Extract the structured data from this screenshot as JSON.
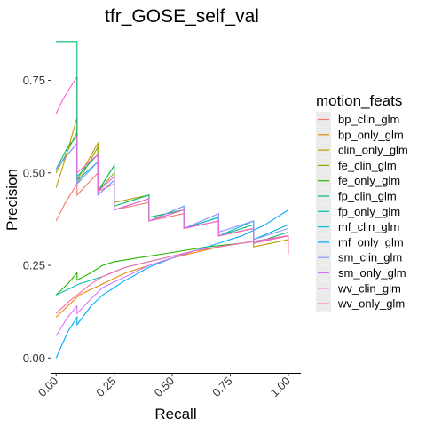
{
  "chart_data": {
    "type": "line",
    "title": "tfr_GOSE_self_val",
    "xlabel": "Recall",
    "ylabel": "Precision",
    "xlim": [
      -0.02,
      1.05
    ],
    "ylim": [
      -0.04,
      0.9
    ],
    "x_ticks": [
      {
        "value": 0.0,
        "label": "0.00"
      },
      {
        "value": 0.25,
        "label": "0.25"
      },
      {
        "value": 0.5,
        "label": "0.50"
      },
      {
        "value": 0.75,
        "label": "0.75"
      },
      {
        "value": 1.0,
        "label": "1.00"
      }
    ],
    "y_ticks": [
      {
        "value": 0.0,
        "label": "0.00"
      },
      {
        "value": 0.25,
        "label": "0.25"
      },
      {
        "value": 0.5,
        "label": "0.50"
      },
      {
        "value": 0.75,
        "label": "0.75"
      }
    ],
    "grid": false,
    "legend_position": "right",
    "legend_title": "motion_feats",
    "series": [
      {
        "name": "bp_clin_glm",
        "color": "#F8766D",
        "points": [
          [
            0.0,
            0.37
          ],
          [
            0.04,
            0.42
          ],
          [
            0.09,
            0.47
          ],
          [
            0.09,
            0.44
          ],
          [
            0.18,
            0.5
          ],
          [
            0.18,
            0.45
          ],
          [
            0.25,
            0.47
          ],
          [
            0.25,
            0.4
          ],
          [
            0.4,
            0.42
          ],
          [
            0.4,
            0.37
          ],
          [
            0.55,
            0.39
          ],
          [
            0.55,
            0.35
          ],
          [
            0.7,
            0.37
          ],
          [
            0.7,
            0.33
          ],
          [
            0.85,
            0.35
          ],
          [
            0.85,
            0.31
          ],
          [
            1.0,
            0.33
          ]
        ]
      },
      {
        "name": "bp_only_glm",
        "color": "#E18A00",
        "points": [
          [
            0.0,
            0.11
          ],
          [
            0.05,
            0.14
          ],
          [
            0.1,
            0.17
          ],
          [
            0.2,
            0.2
          ],
          [
            0.3,
            0.23
          ],
          [
            0.4,
            0.25
          ],
          [
            0.5,
            0.27
          ],
          [
            0.6,
            0.285
          ],
          [
            0.7,
            0.3
          ],
          [
            0.8,
            0.31
          ],
          [
            0.9,
            0.32
          ],
          [
            1.0,
            0.33
          ]
        ]
      },
      {
        "name": "clin_only_glm",
        "color": "#BE9C00",
        "points": [
          [
            0.0,
            0.46
          ],
          [
            0.05,
            0.56
          ],
          [
            0.09,
            0.65
          ],
          [
            0.09,
            0.48
          ],
          [
            0.18,
            0.58
          ],
          [
            0.18,
            0.45
          ],
          [
            0.25,
            0.52
          ],
          [
            0.25,
            0.42
          ],
          [
            0.4,
            0.44
          ],
          [
            0.4,
            0.38
          ],
          [
            0.55,
            0.4
          ],
          [
            0.55,
            0.35
          ],
          [
            0.7,
            0.37
          ],
          [
            0.7,
            0.33
          ],
          [
            0.85,
            0.35
          ],
          [
            0.85,
            0.3
          ],
          [
            1.0,
            0.32
          ]
        ]
      },
      {
        "name": "fe_clin_glm",
        "color": "#8CAB00",
        "points": [
          [
            0.0,
            0.5
          ],
          [
            0.05,
            0.56
          ],
          [
            0.09,
            0.61
          ],
          [
            0.09,
            0.47
          ],
          [
            0.18,
            0.57
          ],
          [
            0.18,
            0.45
          ],
          [
            0.25,
            0.5
          ],
          [
            0.25,
            0.4
          ],
          [
            0.4,
            0.43
          ],
          [
            0.4,
            0.37
          ],
          [
            0.55,
            0.4
          ],
          [
            0.55,
            0.35
          ],
          [
            0.7,
            0.38
          ],
          [
            0.7,
            0.33
          ],
          [
            0.85,
            0.35
          ],
          [
            0.85,
            0.31
          ],
          [
            1.0,
            0.33
          ]
        ]
      },
      {
        "name": "fe_only_glm",
        "color": "#24B700",
        "points": [
          [
            0.0,
            0.17
          ],
          [
            0.05,
            0.2
          ],
          [
            0.09,
            0.23
          ],
          [
            0.09,
            0.21
          ],
          [
            0.15,
            0.23
          ],
          [
            0.2,
            0.25
          ],
          [
            0.25,
            0.26
          ],
          [
            0.35,
            0.27
          ],
          [
            0.5,
            0.285
          ],
          [
            0.65,
            0.3
          ],
          [
            0.8,
            0.31
          ],
          [
            1.0,
            0.33
          ]
        ]
      },
      {
        "name": "fp_clin_glm",
        "color": "#00BE70",
        "points": [
          [
            0.0,
            0.51
          ],
          [
            0.05,
            0.57
          ],
          [
            0.09,
            0.6
          ],
          [
            0.09,
            0.49
          ],
          [
            0.18,
            0.55
          ],
          [
            0.18,
            0.45
          ],
          [
            0.25,
            0.52
          ],
          [
            0.25,
            0.41
          ],
          [
            0.4,
            0.44
          ],
          [
            0.4,
            0.38
          ],
          [
            0.55,
            0.4
          ],
          [
            0.55,
            0.35
          ],
          [
            0.7,
            0.38
          ],
          [
            0.7,
            0.33
          ],
          [
            0.85,
            0.36
          ],
          [
            0.85,
            0.31
          ],
          [
            1.0,
            0.34
          ]
        ]
      },
      {
        "name": "fp_only_glm",
        "color": "#00C1AB",
        "points": [
          [
            0.0,
            0.17
          ],
          [
            0.1,
            0.2
          ],
          [
            0.2,
            0.22
          ],
          [
            0.3,
            0.245
          ],
          [
            0.4,
            0.26
          ],
          [
            0.5,
            0.275
          ],
          [
            0.6,
            0.29
          ],
          [
            0.7,
            0.3
          ],
          [
            0.8,
            0.31
          ],
          [
            0.9,
            0.32
          ],
          [
            1.0,
            0.33
          ]
        ]
      },
      {
        "name": "mf_clin_glm",
        "color": "#00BBDA",
        "points": [
          [
            0.0,
            0.51
          ],
          [
            0.05,
            0.55
          ],
          [
            0.09,
            0.58
          ],
          [
            0.09,
            0.48
          ],
          [
            0.18,
            0.53
          ],
          [
            0.18,
            0.44
          ],
          [
            0.25,
            0.48
          ],
          [
            0.25,
            0.4
          ],
          [
            0.4,
            0.43
          ],
          [
            0.4,
            0.37
          ],
          [
            0.55,
            0.41
          ],
          [
            0.55,
            0.35
          ],
          [
            0.7,
            0.38
          ],
          [
            0.7,
            0.33
          ],
          [
            0.85,
            0.37
          ],
          [
            0.85,
            0.32
          ],
          [
            1.0,
            0.36
          ]
        ]
      },
      {
        "name": "mf_only_glm",
        "color": "#00ACFC",
        "points": [
          [
            0.0,
            0.0
          ],
          [
            0.05,
            0.07
          ],
          [
            0.09,
            0.11
          ],
          [
            0.09,
            0.09
          ],
          [
            0.15,
            0.14
          ],
          [
            0.2,
            0.17
          ],
          [
            0.3,
            0.21
          ],
          [
            0.4,
            0.245
          ],
          [
            0.5,
            0.27
          ],
          [
            0.6,
            0.29
          ],
          [
            0.7,
            0.31
          ],
          [
            0.8,
            0.33
          ],
          [
            0.9,
            0.36
          ],
          [
            1.0,
            0.4
          ]
        ]
      },
      {
        "name": "sm_clin_glm",
        "color": "#8B93FF",
        "points": [
          [
            0.0,
            0.51
          ],
          [
            0.05,
            0.55
          ],
          [
            0.09,
            0.58
          ],
          [
            0.09,
            0.47
          ],
          [
            0.18,
            0.53
          ],
          [
            0.18,
            0.44
          ],
          [
            0.25,
            0.48
          ],
          [
            0.25,
            0.4
          ],
          [
            0.4,
            0.43
          ],
          [
            0.4,
            0.37
          ],
          [
            0.55,
            0.41
          ],
          [
            0.55,
            0.35
          ],
          [
            0.7,
            0.39
          ],
          [
            0.7,
            0.34
          ],
          [
            0.85,
            0.37
          ],
          [
            0.85,
            0.32
          ],
          [
            1.0,
            0.35
          ]
        ]
      },
      {
        "name": "sm_only_glm",
        "color": "#D575FE",
        "points": [
          [
            0.0,
            0.06
          ],
          [
            0.05,
            0.11
          ],
          [
            0.09,
            0.14
          ],
          [
            0.09,
            0.12
          ],
          [
            0.15,
            0.16
          ],
          [
            0.2,
            0.19
          ],
          [
            0.3,
            0.22
          ],
          [
            0.4,
            0.25
          ],
          [
            0.5,
            0.27
          ],
          [
            0.6,
            0.29
          ],
          [
            0.7,
            0.3
          ],
          [
            0.8,
            0.31
          ],
          [
            0.9,
            0.32
          ],
          [
            1.0,
            0.33
          ]
        ]
      },
      {
        "name": "wv_clin_glm",
        "color": "#F962DD",
        "points": [
          [
            0.0,
            0.66
          ],
          [
            0.03,
            0.7
          ],
          [
            0.06,
            0.73
          ],
          [
            0.09,
            0.76
          ],
          [
            0.09,
            0.5
          ],
          [
            0.18,
            0.55
          ],
          [
            0.18,
            0.45
          ],
          [
            0.25,
            0.49
          ],
          [
            0.25,
            0.4
          ],
          [
            0.4,
            0.43
          ],
          [
            0.4,
            0.37
          ],
          [
            0.55,
            0.4
          ],
          [
            0.55,
            0.35
          ],
          [
            0.7,
            0.37
          ],
          [
            0.7,
            0.33
          ],
          [
            0.85,
            0.35
          ],
          [
            0.85,
            0.31
          ],
          [
            1.0,
            0.33
          ]
        ]
      },
      {
        "name": "wv_only_glm",
        "color": "#FF65AC",
        "points": [
          [
            0.0,
            0.12
          ],
          [
            0.05,
            0.15
          ],
          [
            0.09,
            0.17
          ],
          [
            0.15,
            0.2
          ],
          [
            0.2,
            0.22
          ],
          [
            0.3,
            0.245
          ],
          [
            0.4,
            0.26
          ],
          [
            0.5,
            0.275
          ],
          [
            0.6,
            0.29
          ],
          [
            0.7,
            0.3
          ],
          [
            0.8,
            0.31
          ],
          [
            0.9,
            0.32
          ],
          [
            1.0,
            0.33
          ],
          [
            1.0,
            0.28
          ]
        ]
      },
      {
        "name": "",
        "color": "#00BE70",
        "legend": false,
        "points": [
          [
            0.0,
            0.855
          ],
          [
            0.09,
            0.855
          ],
          [
            0.09,
            0.6
          ]
        ]
      }
    ]
  }
}
